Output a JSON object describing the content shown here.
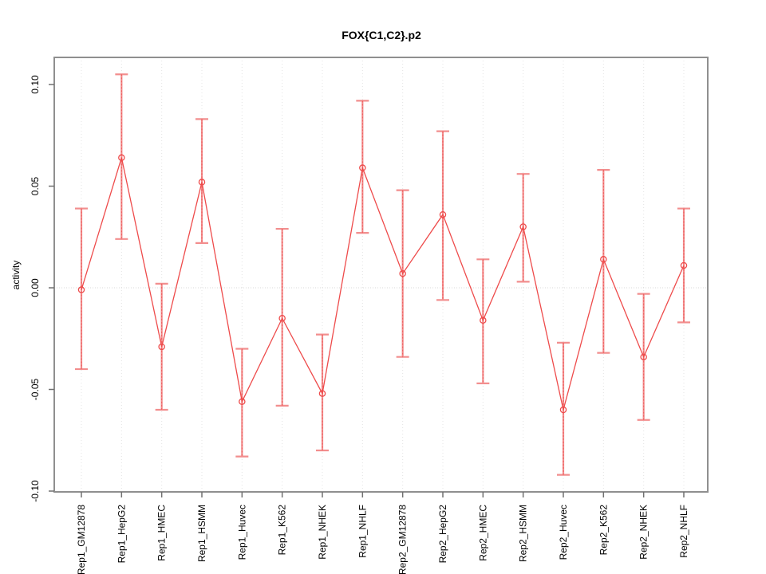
{
  "figure": {
    "title": "FOX{C1,C2}.p2",
    "ylabel": "activity"
  },
  "colors": {
    "series_line": "#ee4b4b",
    "marker_stroke": "#ee4b4b",
    "error_bar": "#f28e8e",
    "grid_vertical": "#e4e4e4",
    "zero_line": "#d9d9d9",
    "axis_box": "#8f8f8f",
    "tick_mark": "#707070",
    "text": "#000000",
    "background": "#ffffff"
  },
  "chart_data": {
    "type": "line",
    "title": "FOX{C1,C2}.p2",
    "xlabel": "",
    "ylabel": "activity",
    "ylim": [
      -0.1,
      0.1
    ],
    "ytick_values": [
      0.1,
      0.05,
      0.0,
      -0.05,
      -0.1
    ],
    "ytick_labels": [
      "0.10",
      "0.05",
      "0.00",
      "-0.05",
      "-0.10"
    ],
    "grid": "dotted vertical line at every category; dotted horizontal line at y=0 only",
    "legend_position": "none",
    "marker": "open-circle",
    "error_bars": true,
    "categories": [
      "Rep1_GM12878",
      "Rep1_HepG2",
      "Rep1_HMEC",
      "Rep1_HSMM",
      "Rep1_Huvec",
      "Rep1_K562",
      "Rep1_NHEK",
      "Rep1_NHLF",
      "Rep2_GM12878",
      "Rep2_HepG2",
      "Rep2_HMEC",
      "Rep2_HSMM",
      "Rep2_Huvec",
      "Rep2_K562",
      "Rep2_NHEK",
      "Rep2_NHLF"
    ],
    "series": [
      {
        "name": "activity",
        "values": [
          -0.001,
          0.064,
          -0.029,
          0.052,
          -0.056,
          -0.015,
          -0.052,
          0.059,
          0.007,
          0.036,
          -0.016,
          0.03,
          -0.06,
          0.014,
          -0.034,
          0.011
        ],
        "lower": [
          -0.04,
          0.024,
          -0.06,
          0.022,
          -0.083,
          -0.058,
          -0.08,
          0.027,
          -0.034,
          -0.006,
          -0.047,
          0.003,
          -0.092,
          -0.032,
          -0.065,
          -0.017
        ],
        "upper": [
          0.039,
          0.105,
          0.002,
          0.083,
          -0.03,
          0.029,
          -0.023,
          0.092,
          0.048,
          0.077,
          0.014,
          0.056,
          -0.027,
          0.058,
          -0.003,
          0.039
        ]
      }
    ]
  }
}
